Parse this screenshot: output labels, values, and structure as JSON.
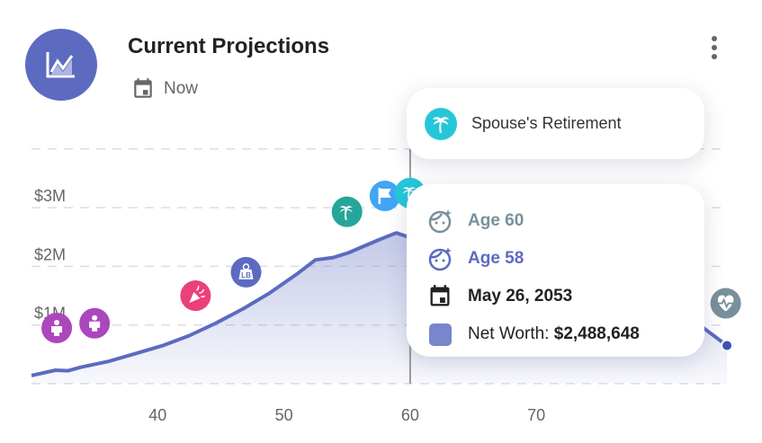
{
  "header": {
    "title": "Current Projections",
    "subtitle": "Now",
    "logo_icon": "trending-up-chart-icon",
    "menu_icon": "more-vertical-icon",
    "accent": "#5c6bc0"
  },
  "tooltip": {
    "event": "Spouse's Retirement",
    "event_icon": "palm-tree-icon",
    "age_primary": "Age 60",
    "age_secondary": "Age 58",
    "date": "May 26, 2053",
    "net_worth_label": "Net Worth:",
    "net_worth_value": "$2,488,648"
  },
  "chart_data": {
    "type": "area",
    "x_ticks": [
      40,
      50,
      60,
      70
    ],
    "y_ticks": [
      {
        "v": 1,
        "label": "$1M"
      },
      {
        "v": 2,
        "label": "$2M"
      },
      {
        "v": 3,
        "label": "$3M"
      }
    ],
    "xlim": [
      30,
      85
    ],
    "ylim": [
      0,
      4
    ],
    "grid": "horizontal dashed",
    "series": [
      {
        "color": "#5c6bc0",
        "points": [
          [
            30,
            0.14
          ],
          [
            31.9,
            0.23
          ],
          [
            32.9,
            0.22
          ],
          [
            33.9,
            0.28
          ],
          [
            36.1,
            0.38
          ],
          [
            38.2,
            0.51
          ],
          [
            40.4,
            0.65
          ],
          [
            42.5,
            0.82
          ],
          [
            44.6,
            1.03
          ],
          [
            46.8,
            1.28
          ],
          [
            48.9,
            1.55
          ],
          [
            51.1,
            1.88
          ],
          [
            52.5,
            2.11
          ],
          [
            53.9,
            2.15
          ],
          [
            55.1,
            2.23
          ],
          [
            57.5,
            2.45
          ],
          [
            58.9,
            2.57
          ],
          [
            60,
            2.49
          ],
          [
            64.6,
            2.26
          ],
          [
            70.4,
            2.02
          ],
          [
            78.2,
            1.65
          ],
          [
            81.8,
            1.18
          ],
          [
            85.1,
            0.65
          ]
        ]
      }
    ],
    "cursor_x": 60,
    "events": [
      {
        "icon": "child-icon",
        "color": "#ab47bc",
        "age": 32,
        "value": 0.95
      },
      {
        "icon": "child-icon",
        "color": "#ab47bc",
        "age": 35,
        "value": 1.03
      },
      {
        "icon": "party-popper-icon",
        "color": "#ec407a",
        "age": 43,
        "value": 1.5
      },
      {
        "icon": "weight-lb-icon",
        "color": "#5c6bc0",
        "age": 47,
        "value": 1.9
      },
      {
        "icon": "palm-tree-icon",
        "color": "#26a69a",
        "age": 55,
        "value": 2.93
      },
      {
        "icon": "flag-icon",
        "color": "#42a5f5",
        "age": 58,
        "value": 3.2
      },
      {
        "icon": "palm-tree-icon",
        "color": "#26c6da",
        "age": 60,
        "value": 3.25
      },
      {
        "icon": "heart-pulse-icon",
        "color": "#78909c",
        "age": 85,
        "value": 1.37
      }
    ]
  }
}
